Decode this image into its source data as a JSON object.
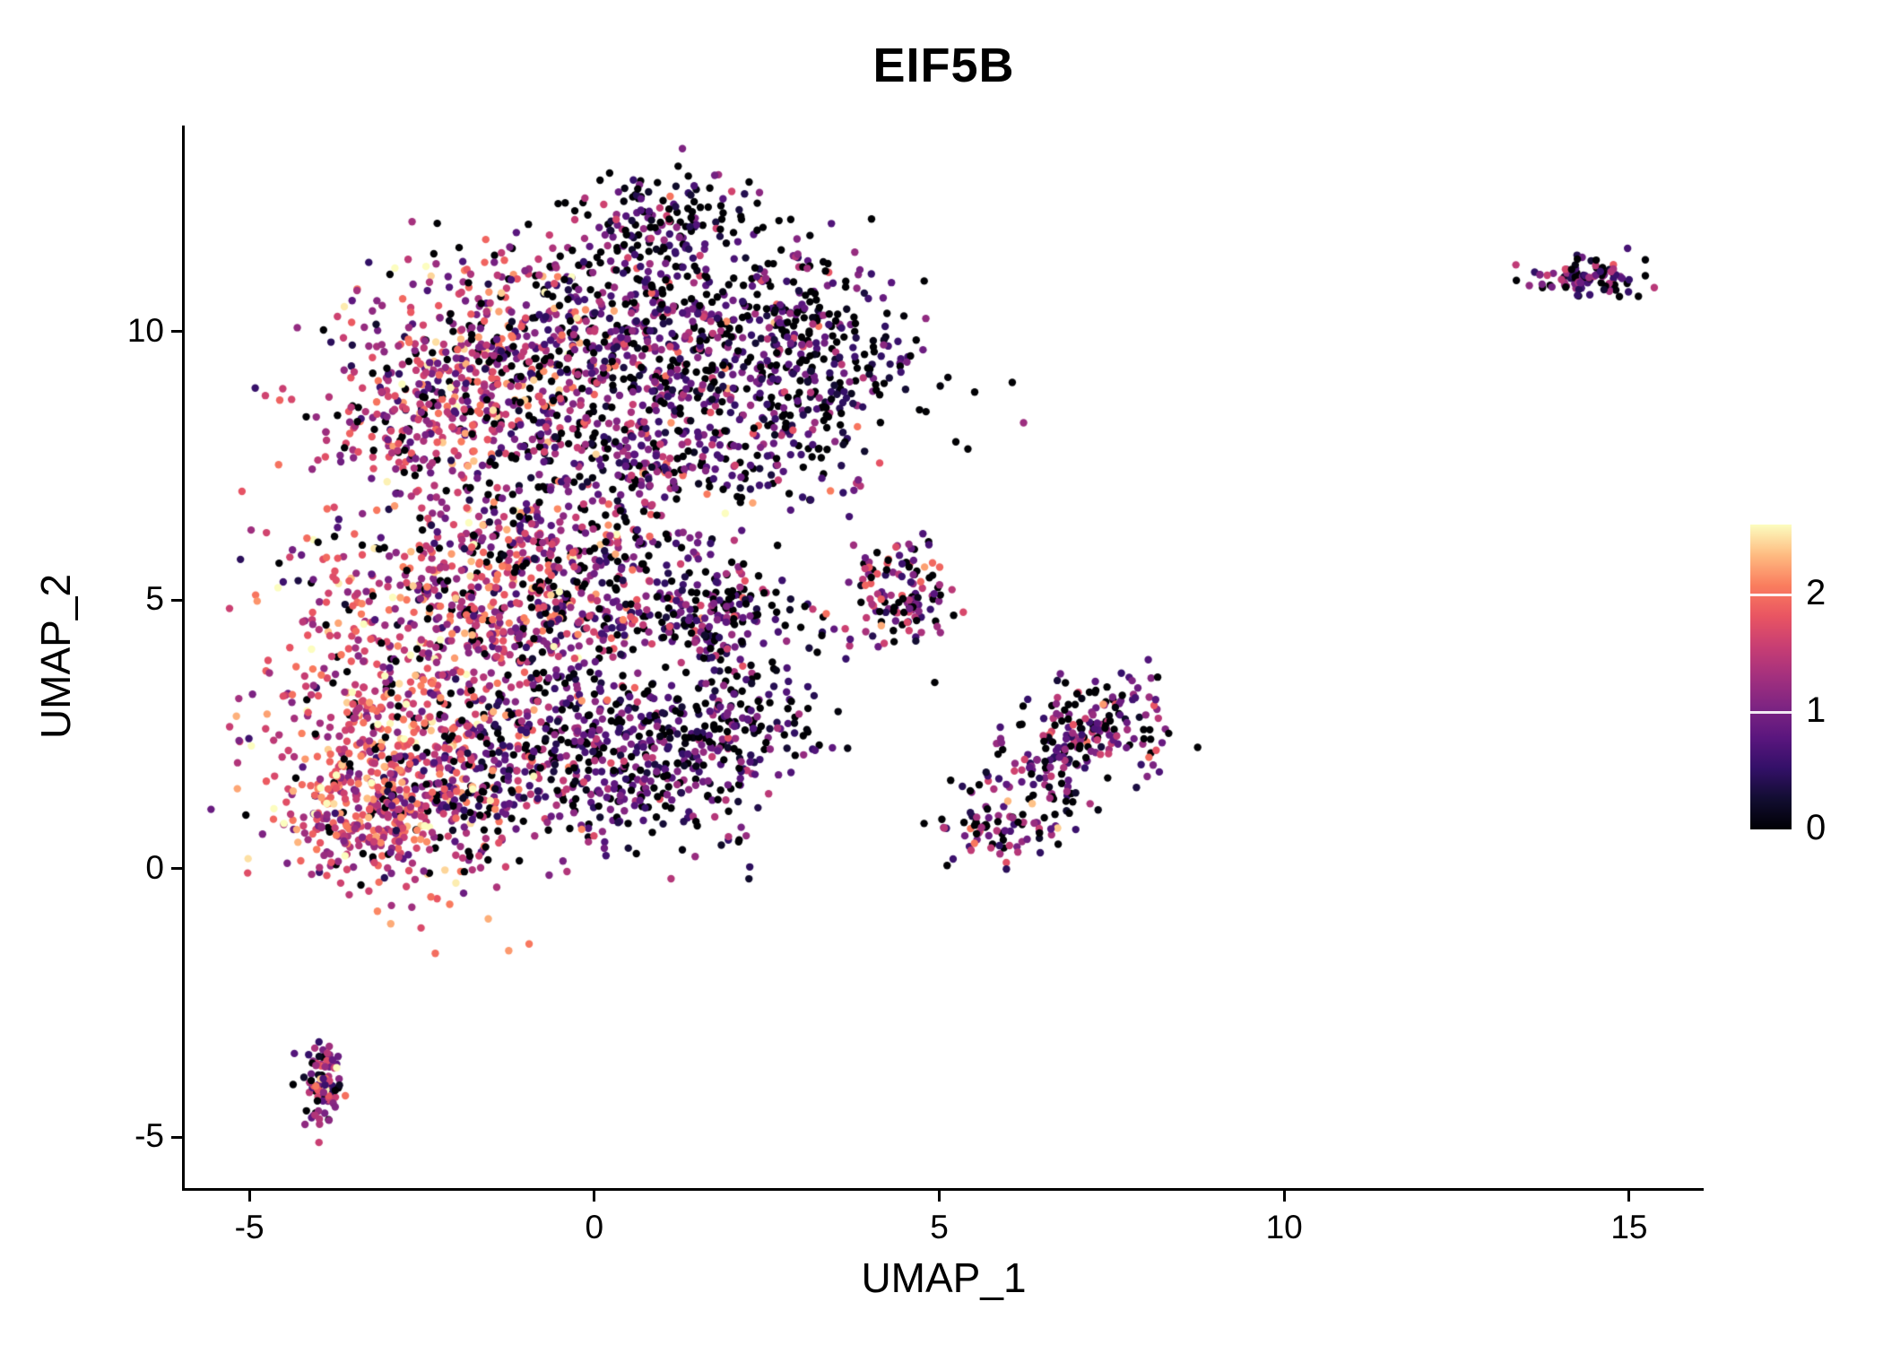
{
  "chart_data": {
    "type": "scatter",
    "title": "EIF5B",
    "xlabel": "UMAP_1",
    "ylabel": "UMAP_2",
    "xlim": [
      -5.95,
      16.08
    ],
    "ylim": [
      -5.95,
      13.84
    ],
    "xticks": [
      -5,
      0,
      5,
      10,
      15
    ],
    "yticks": [
      -5,
      0,
      5,
      10
    ],
    "grid": false,
    "legend_position": "right",
    "point_radius": 4.2,
    "background": "#ffffff",
    "colorbar": {
      "vmin": 0,
      "vmax": 2.6,
      "ticks": [
        0,
        1,
        2
      ],
      "colormap": "magma",
      "stops": [
        [
          0.0,
          "#000004"
        ],
        [
          0.1,
          "#120d31"
        ],
        [
          0.2,
          "#331068"
        ],
        [
          0.3,
          "#5a167e"
        ],
        [
          0.4,
          "#7d2482"
        ],
        [
          0.5,
          "#a3307e"
        ],
        [
          0.6,
          "#c83e73"
        ],
        [
          0.7,
          "#e95562"
        ],
        [
          0.8,
          "#fa7d5e"
        ],
        [
          0.9,
          "#febb81"
        ],
        [
          1.0,
          "#fcfdbf"
        ]
      ]
    },
    "clusters": [
      {
        "cx": -1.6,
        "cy": 9.4,
        "sx": 1.1,
        "sy": 1.0,
        "n": 420,
        "zero": 0.12,
        "mean": 1.5,
        "sd": 0.55
      },
      {
        "cx": 0.9,
        "cy": 9.9,
        "sx": 1.4,
        "sy": 1.1,
        "n": 650,
        "zero": 0.3,
        "mean": 0.9,
        "sd": 0.5
      },
      {
        "cx": 3.2,
        "cy": 9.3,
        "sx": 0.75,
        "sy": 0.9,
        "n": 280,
        "zero": 0.4,
        "mean": 0.7,
        "sd": 0.45
      },
      {
        "cx": 1.1,
        "cy": 12.1,
        "sx": 0.55,
        "sy": 0.45,
        "n": 130,
        "zero": 0.35,
        "mean": 0.8,
        "sd": 0.5
      },
      {
        "cx": -2.6,
        "cy": 8.2,
        "sx": 0.7,
        "sy": 0.6,
        "n": 160,
        "zero": 0.15,
        "mean": 1.5,
        "sd": 0.5
      },
      {
        "cx": 0.9,
        "cy": 7.8,
        "sx": 1.3,
        "sy": 0.7,
        "n": 280,
        "zero": 0.28,
        "mean": 1.0,
        "sd": 0.5
      },
      {
        "cx": -1.9,
        "cy": 5.2,
        "sx": 1.2,
        "sy": 0.9,
        "n": 420,
        "zero": 0.1,
        "mean": 1.6,
        "sd": 0.5
      },
      {
        "cx": 0.4,
        "cy": 4.9,
        "sx": 1.1,
        "sy": 0.65,
        "n": 260,
        "zero": 0.3,
        "mean": 0.9,
        "sd": 0.5
      },
      {
        "cx": 1.9,
        "cy": 4.7,
        "sx": 0.5,
        "sy": 0.4,
        "n": 110,
        "zero": 0.35,
        "mean": 0.8,
        "sd": 0.5
      },
      {
        "cx": -0.9,
        "cy": 6.3,
        "sx": 1.3,
        "sy": 0.7,
        "n": 200,
        "zero": 0.25,
        "mean": 1.1,
        "sd": 0.5
      },
      {
        "cx": -3.0,
        "cy": 2.2,
        "sx": 0.9,
        "sy": 1.3,
        "n": 520,
        "zero": 0.08,
        "mean": 1.7,
        "sd": 0.5
      },
      {
        "cx": -1.0,
        "cy": 2.3,
        "sx": 1.1,
        "sy": 1.0,
        "n": 450,
        "zero": 0.25,
        "mean": 1.0,
        "sd": 0.5
      },
      {
        "cx": 0.9,
        "cy": 2.1,
        "sx": 1.0,
        "sy": 0.8,
        "n": 320,
        "zero": 0.35,
        "mean": 0.8,
        "sd": 0.45
      },
      {
        "cx": -3.3,
        "cy": 0.8,
        "sx": 0.7,
        "sy": 0.5,
        "n": 180,
        "zero": 0.1,
        "mean": 1.6,
        "sd": 0.5
      },
      {
        "cx": 2.2,
        "cy": 2.9,
        "sx": 0.5,
        "sy": 0.5,
        "n": 90,
        "zero": 0.4,
        "mean": 0.7,
        "sd": 0.4
      },
      {
        "cx": 4.45,
        "cy": 5.0,
        "sx": 0.38,
        "sy": 0.5,
        "n": 130,
        "zero": 0.25,
        "mean": 1.1,
        "sd": 0.55
      },
      {
        "cx": 7.3,
        "cy": 2.7,
        "sx": 0.55,
        "sy": 0.5,
        "n": 160,
        "zero": 0.3,
        "mean": 1.0,
        "sd": 0.5
      },
      {
        "cx": 6.4,
        "cy": 1.6,
        "sx": 0.5,
        "sy": 0.5,
        "n": 80,
        "zero": 0.3,
        "mean": 1.0,
        "sd": 0.5
      },
      {
        "cx": 5.8,
        "cy": 0.7,
        "sx": 0.45,
        "sy": 0.25,
        "n": 70,
        "zero": 0.3,
        "mean": 1.0,
        "sd": 0.5
      },
      {
        "cx": -3.95,
        "cy": -4.0,
        "sx": 0.14,
        "sy": 0.45,
        "n": 90,
        "zero": 0.2,
        "mean": 1.2,
        "sd": 0.6
      },
      {
        "cx": 14.4,
        "cy": 11.0,
        "sx": 0.38,
        "sy": 0.16,
        "n": 100,
        "zero": 0.3,
        "mean": 0.9,
        "sd": 0.5
      }
    ]
  }
}
